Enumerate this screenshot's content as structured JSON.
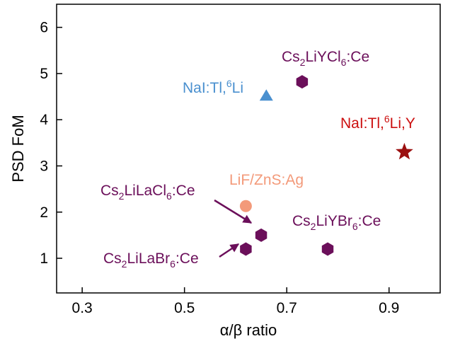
{
  "chart_data": {
    "type": "scatter",
    "title": "",
    "xlabel": "α/β ratio",
    "ylabel": "PSD FoM",
    "xlim": [
      0.25,
      1.0
    ],
    "ylim": [
      0.25,
      6.5
    ],
    "xticks": [
      "0.3",
      "0.5",
      "0.7",
      "0.9"
    ],
    "yticks": [
      "1",
      "2",
      "3",
      "4",
      "5",
      "6"
    ],
    "grid": false,
    "legend": "none",
    "points": [
      {
        "label": "NaI:Tl,6Li",
        "x": 0.66,
        "y": 4.52,
        "marker": "triangle",
        "color": "#4a90cf"
      },
      {
        "label": "Cs2LiYCl6:Ce",
        "x": 0.73,
        "y": 4.82,
        "marker": "hexagon",
        "color": "#6b0f5a"
      },
      {
        "label": "NaI:Tl,6Li,Y",
        "x": 0.93,
        "y": 3.3,
        "marker": "star",
        "color": "#9b1010"
      },
      {
        "label": "LiF/ZnS:Ag",
        "x": 0.62,
        "y": 2.13,
        "marker": "circle",
        "color": "#f39a7a"
      },
      {
        "label": "Cs2LiLaCl6:Ce",
        "x": 0.65,
        "y": 1.5,
        "marker": "hexagon",
        "color": "#6b0f5a"
      },
      {
        "label": "Cs2LiLaBr6:Ce",
        "x": 0.62,
        "y": 1.2,
        "marker": "hexagon",
        "color": "#6b0f5a"
      },
      {
        "label": "Cs2LiYBr6:Ce",
        "x": 0.78,
        "y": 1.2,
        "marker": "hexagon",
        "color": "#6b0f5a"
      }
    ]
  }
}
